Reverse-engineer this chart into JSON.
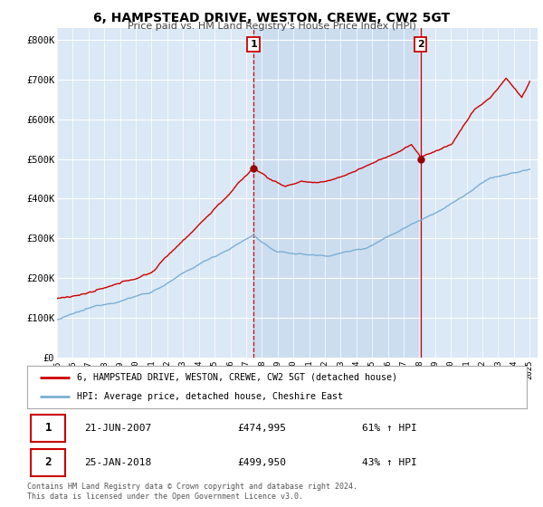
{
  "title": "6, HAMPSTEAD DRIVE, WESTON, CREWE, CW2 5GT",
  "subtitle": "Price paid vs. HM Land Registry's House Price Index (HPI)",
  "ytick_labels": [
    "£0",
    "£100K",
    "£200K",
    "£300K",
    "£400K",
    "£500K",
    "£600K",
    "£700K",
    "£800K"
  ],
  "yticks": [
    0,
    100000,
    200000,
    300000,
    400000,
    500000,
    600000,
    700000,
    800000
  ],
  "sale1_date": "21-JUN-2007",
  "sale1_price": 474995,
  "sale1_hpi": "61% ↑ HPI",
  "sale2_date": "25-JAN-2018",
  "sale2_price": 499950,
  "sale2_hpi": "43% ↑ HPI",
  "sale1_year": 2007.47,
  "sale2_year": 2018.07,
  "red_line_color": "#cc0000",
  "blue_line_color": "#7bafd4",
  "marker_color": "#990000",
  "vline_color": "#cc0000",
  "legend_label1": "6, HAMPSTEAD DRIVE, WESTON, CREWE, CW2 5GT (detached house)",
  "legend_label2": "HPI: Average price, detached house, Cheshire East",
  "footer": "Contains HM Land Registry data © Crown copyright and database right 2024.\nThis data is licensed under the Open Government Licence v3.0.",
  "plot_bg_color": "#dbe8f5",
  "shade_color": "#ccddf0",
  "fig_bg_color": "#ffffff",
  "grid_color": "#ffffff",
  "xmin": 1995,
  "xmax": 2025
}
